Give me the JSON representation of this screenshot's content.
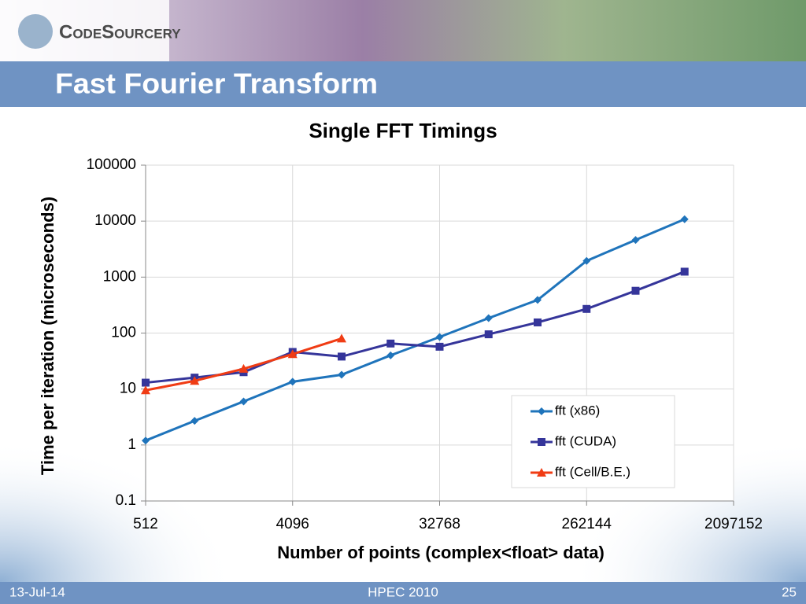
{
  "slide": {
    "logo": "CodeSourcery",
    "title": "Fast Fourier Transform",
    "footer_left": "13-Jul-14",
    "footer_center": "HPEC 2010",
    "footer_right": "25"
  },
  "chart_data": {
    "type": "line",
    "title": "Single FFT Timings",
    "x_label": "Number of points (complex<float> data)",
    "y_label": "Time per iteration (microseconds)",
    "x": [
      512,
      1024,
      2048,
      4096,
      8192,
      16384,
      32768,
      65536,
      131072,
      262144,
      524288,
      1048576
    ],
    "series": [
      {
        "name": "fft (x86)",
        "color": "#1f74bb",
        "marker": "diamond",
        "values": [
          1.2,
          2.7,
          6,
          13.5,
          18,
          40,
          85,
          185,
          390,
          1950,
          4600,
          10800
        ]
      },
      {
        "name": "fft (CUDA)",
        "color": "#35359a",
        "marker": "square",
        "values": [
          13,
          16,
          20,
          46,
          38,
          65,
          57,
          95,
          155,
          270,
          570,
          1250
        ]
      },
      {
        "name": "fft (Cell/B.E.)",
        "color": "#f03c14",
        "marker": "triangle",
        "values": [
          9.5,
          14,
          23,
          42,
          80,
          null,
          null,
          null,
          null,
          null,
          null,
          null
        ]
      }
    ],
    "xscale": "log2",
    "yscale": "log10",
    "xlim": [
      512,
      2097152
    ],
    "xticks": [
      512,
      4096,
      32768,
      262144,
      2097152
    ],
    "ylim": [
      0.1,
      100000
    ],
    "yticks": [
      0.1,
      1,
      10,
      100,
      1000,
      10000,
      100000
    ],
    "grid": true,
    "legend": "lower right"
  }
}
